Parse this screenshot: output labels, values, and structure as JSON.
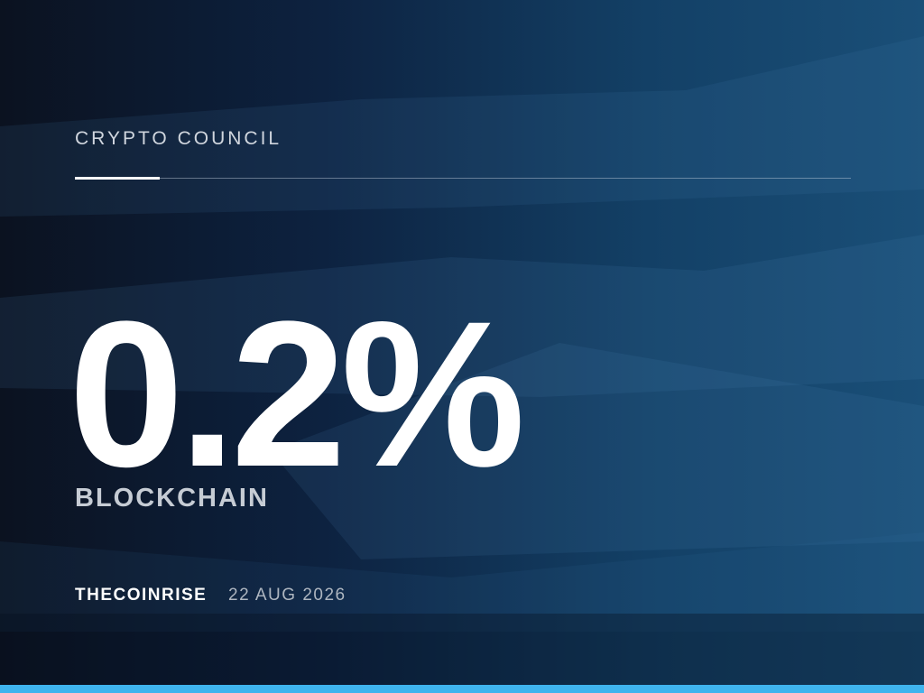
{
  "header": {
    "title": "CRYPTO COUNCIL"
  },
  "stat": {
    "value": "0.2%",
    "label": "BLOCKCHAIN"
  },
  "footer": {
    "source": "THECOINRISE",
    "date": "22 AUG 2026"
  }
}
